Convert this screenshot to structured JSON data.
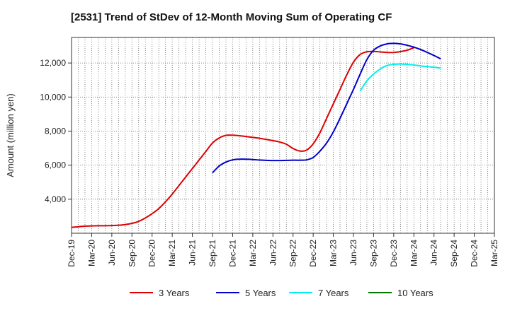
{
  "chart_data": {
    "type": "line",
    "title": "[2531]  Trend of StDev of 12-Month Moving Sum of Operating CF",
    "xlabel": "",
    "ylabel": "Amount (million yen)",
    "ylim": [
      2000,
      13500
    ],
    "yticks": [
      4000,
      6000,
      8000,
      10000,
      12000
    ],
    "ytick_labels": [
      "4,000",
      "6,000",
      "8,000",
      "10,000",
      "12,000"
    ],
    "x_categories": [
      "Dec-19",
      "Mar-20",
      "Jun-20",
      "Sep-20",
      "Dec-20",
      "Mar-21",
      "Jun-21",
      "Sep-21",
      "Dec-21",
      "Mar-22",
      "Jun-22",
      "Sep-22",
      "Dec-22",
      "Mar-23",
      "Jun-23",
      "Sep-23",
      "Dec-23",
      "Mar-24",
      "Jun-24",
      "Sep-24",
      "Dec-24",
      "Mar-25"
    ],
    "grid": true,
    "series": [
      {
        "name": "3 Years",
        "color": "#dd0000",
        "start_index": 0,
        "values": [
          2350,
          2380,
          2420,
          2430,
          2440,
          2440,
          2450,
          2470,
          2510,
          2580,
          2700,
          2900,
          3150,
          3450,
          3850,
          4300,
          4800,
          5300,
          5800,
          6300,
          6800,
          7300,
          7600,
          7750,
          7760,
          7730,
          7680,
          7630,
          7580,
          7510,
          7440,
          7360,
          7230,
          6980,
          6830,
          6880,
          7250,
          7900,
          8750,
          9600,
          10450,
          11300,
          12050,
          12500,
          12660,
          12680,
          12650,
          12620,
          12620,
          12670,
          12750,
          12900
        ]
      },
      {
        "name": "5 Years",
        "color": "#0000cc",
        "start_index": 21,
        "values": [
          5550,
          5950,
          6180,
          6310,
          6350,
          6350,
          6330,
          6300,
          6280,
          6270,
          6270,
          6280,
          6290,
          6290,
          6310,
          6450,
          6820,
          7300,
          7950,
          8750,
          9600,
          10450,
          11350,
          12200,
          12750,
          13000,
          13120,
          13150,
          13120,
          13040,
          12930,
          12790,
          12620,
          12440,
          12240
        ]
      },
      {
        "name": "7 Years",
        "color": "#00eeee",
        "start_index": 43,
        "values": [
          10350,
          10950,
          11350,
          11650,
          11850,
          11920,
          11940,
          11920,
          11880,
          11830,
          11790,
          11750,
          11700
        ]
      },
      {
        "name": "10 Years",
        "color": "#007700",
        "start_index": 0,
        "values": []
      }
    ]
  }
}
